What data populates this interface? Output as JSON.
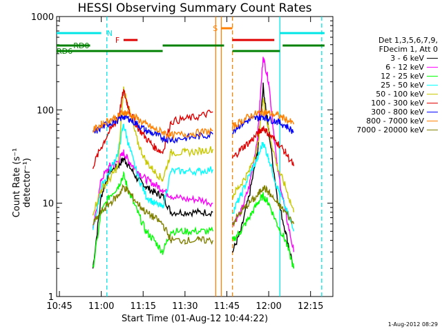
{
  "chart_data": {
    "type": "line",
    "title": "HESSI Observing Summary Count Rates",
    "xlabel": "Start Time (01-Aug-12 10:44:22)",
    "ylabel": "Count Rate (s⁻¹ detector⁻¹)",
    "yscale": "log",
    "ylim": [
      1,
      1000
    ],
    "xlim": [
      "10:44",
      "12:23"
    ],
    "x_ticks": [
      "10:45",
      "11:00",
      "11:15",
      "11:30",
      "11:45",
      "12:00",
      "12:15"
    ],
    "y_ticks": [
      "1",
      "10",
      "100",
      "1000"
    ],
    "stamp": "1-Aug-2012 08:29",
    "legend_header": [
      "Det 1,3,5,6,7,9,",
      "FDecim 1, Att 0"
    ],
    "flags": [
      {
        "label": "N",
        "color": "#00e5e5",
        "segments": [
          [
            "10:44",
            "11:00"
          ],
          [
            "12:04",
            "12:20"
          ]
        ]
      },
      {
        "label": "F",
        "color": "#e00000",
        "segments": [
          [
            "11:08",
            "11:13"
          ],
          [
            "11:47",
            "12:02"
          ]
        ]
      },
      {
        "label": "S",
        "color": "#ff8000",
        "segments": [
          [
            "11:43",
            "11:47"
          ]
        ]
      },
      {
        "label": "RD0",
        "color": "#008000",
        "segments": [
          [
            "10:44",
            "10:56"
          ],
          [
            "11:22",
            "11:44"
          ],
          [
            "12:05",
            "12:20"
          ]
        ]
      },
      {
        "label": "RD6",
        "color": "#008000",
        "segments": [
          [
            "10:44",
            "11:22"
          ],
          [
            "11:47",
            "12:04"
          ]
        ]
      }
    ],
    "vlines": [
      {
        "x": "11:02",
        "color": "#00e5e5",
        "style": "dash"
      },
      {
        "x": "11:41",
        "color": "#ff8000",
        "style": "solid"
      },
      {
        "x": "11:43",
        "color": "#ff8000",
        "style": "solid"
      },
      {
        "x": "11:47",
        "color": "#ff8000",
        "style": "dash"
      },
      {
        "x": "12:04",
        "color": "#00e5e5",
        "style": "solid"
      },
      {
        "x": "12:19",
        "color": "#00e5e5",
        "style": "dash"
      }
    ],
    "x": [
      "10:57",
      "11:00",
      "11:03",
      "11:06",
      "11:08",
      "11:10",
      "11:13",
      "11:16",
      "11:19",
      "11:22",
      "11:25",
      "11:30",
      "11:35",
      "11:40",
      "11:47",
      "11:50",
      "11:53",
      "11:56",
      "11:58",
      "12:00",
      "12:03",
      "12:06",
      "12:09"
    ],
    "gaps": [
      [
        "11:40",
        "11:47"
      ]
    ],
    "series": [
      {
        "name": "3 - 6 keV",
        "color": "#000000",
        "values": [
          2,
          12,
          22,
          25,
          30,
          25,
          18,
          15,
          13,
          12,
          8,
          8,
          8,
          8,
          3,
          5,
          12,
          35,
          180,
          60,
          12,
          5,
          2
        ]
      },
      {
        "name": "6 - 12 keV",
        "color": "#ff00ff",
        "values": [
          5,
          18,
          25,
          28,
          35,
          28,
          22,
          18,
          16,
          14,
          12,
          11,
          11,
          10,
          6,
          8,
          15,
          50,
          370,
          200,
          25,
          8,
          3
        ]
      },
      {
        "name": "12 - 25 keV",
        "color": "#00ff00",
        "values": [
          2,
          8,
          12,
          15,
          20,
          13,
          8,
          5,
          4,
          3,
          5,
          5,
          5,
          5,
          4,
          5,
          7,
          10,
          12,
          10,
          6,
          4,
          2
        ]
      },
      {
        "name": "25 - 50 keV",
        "color": "#00ffff",
        "values": [
          5,
          15,
          22,
          35,
          70,
          40,
          20,
          12,
          10,
          9,
          22,
          22,
          22,
          23,
          8,
          12,
          20,
          30,
          45,
          30,
          15,
          9,
          5
        ]
      },
      {
        "name": "50 - 100 keV",
        "color": "#c8c800",
        "values": [
          8,
          14,
          18,
          25,
          170,
          100,
          45,
          28,
          22,
          18,
          35,
          35,
          36,
          38,
          12,
          16,
          22,
          40,
          130,
          60,
          25,
          15,
          8
        ]
      },
      {
        "name": "100 - 300 keV",
        "color": "#e00000",
        "values": [
          25,
          40,
          60,
          80,
          160,
          100,
          65,
          50,
          40,
          35,
          75,
          80,
          85,
          95,
          30,
          38,
          45,
          55,
          65,
          55,
          45,
          35,
          25
        ]
      },
      {
        "name": "300 - 800 keV",
        "color": "#0000ff",
        "values": [
          55,
          65,
          72,
          78,
          85,
          80,
          70,
          60,
          55,
          50,
          48,
          50,
          52,
          55,
          60,
          70,
          78,
          82,
          85,
          80,
          75,
          68,
          58
        ]
      },
      {
        "name": "800 - 7000 keV",
        "color": "#ff8000",
        "values": [
          60,
          70,
          78,
          85,
          95,
          90,
          80,
          70,
          62,
          58,
          53,
          55,
          57,
          60,
          65,
          75,
          85,
          92,
          95,
          92,
          88,
          80,
          70
        ]
      },
      {
        "name": "7000 - 20000 keV",
        "color": "#808000",
        "values": [
          6,
          8,
          10,
          12,
          15,
          13,
          10,
          8,
          7,
          6,
          4,
          4,
          4,
          4,
          6,
          8,
          10,
          12,
          15,
          13,
          10,
          8,
          6
        ]
      }
    ]
  }
}
